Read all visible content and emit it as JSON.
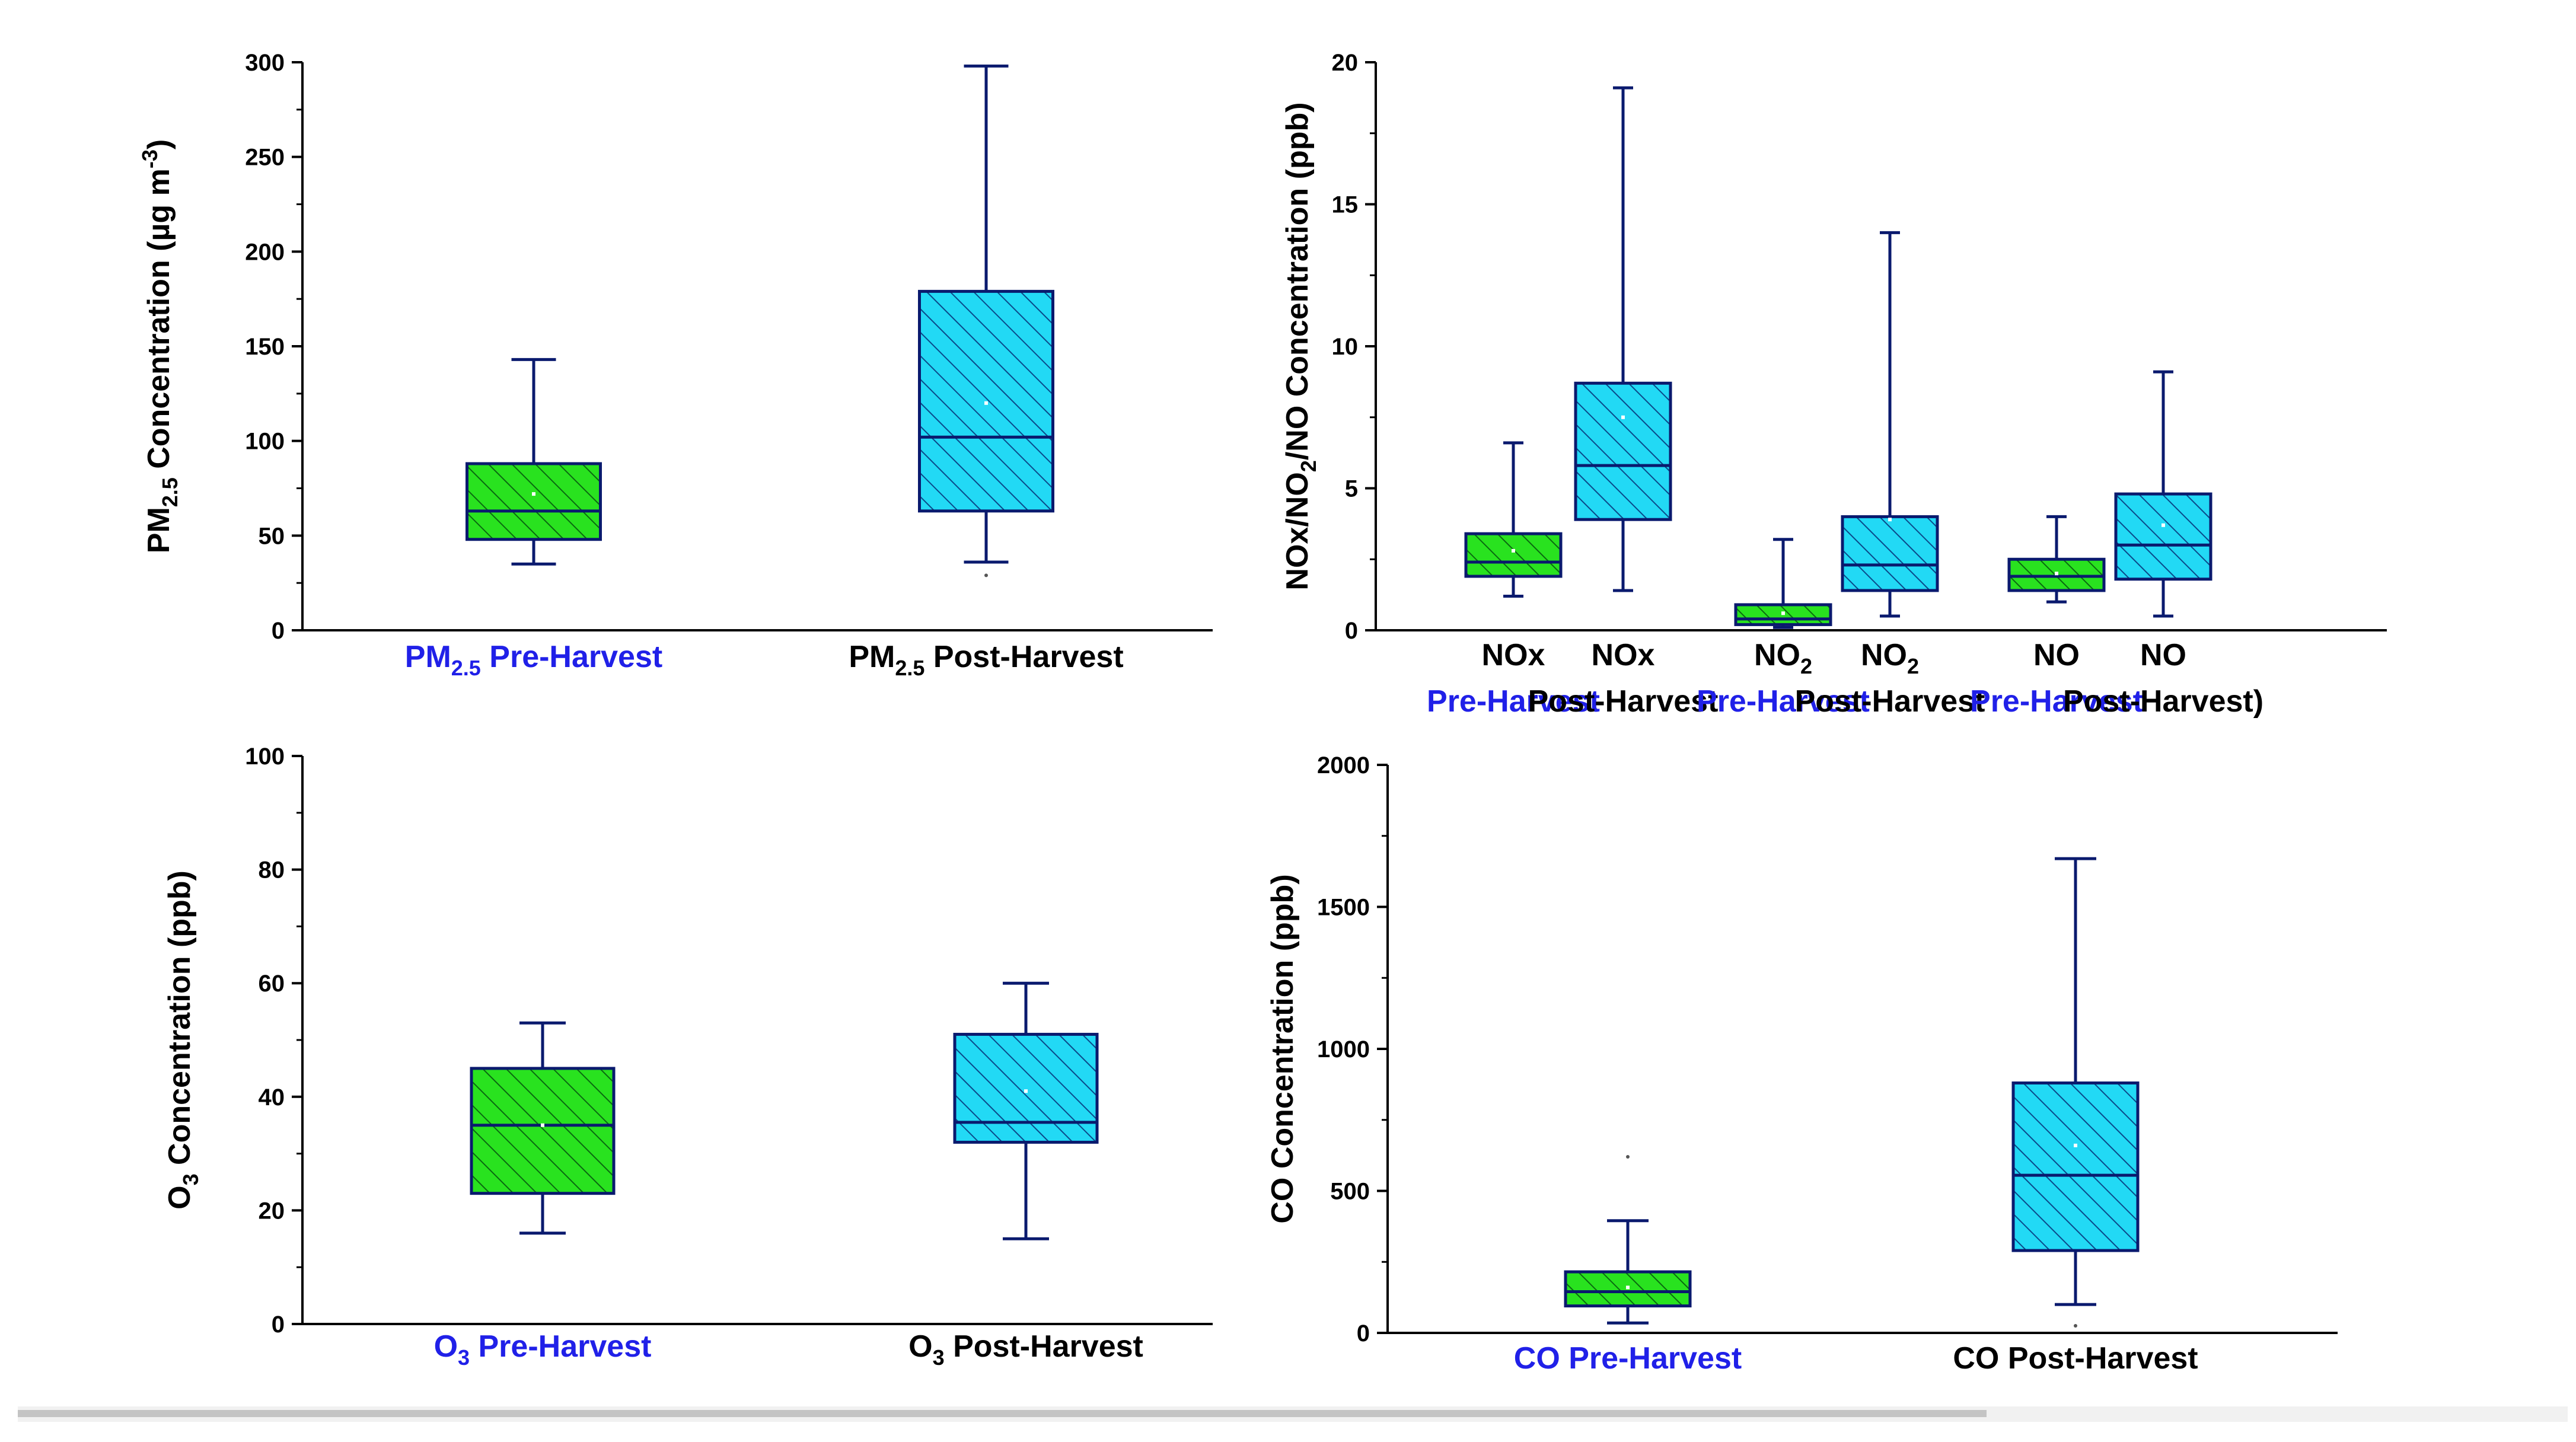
{
  "colors": {
    "pre_fill": "#29e21f",
    "post_fill": "#22d9f5",
    "stroke": "#0a1a6e",
    "pre_label": "#2020e8",
    "post_label": "#000000"
  },
  "chart_data": [
    {
      "id": "pm25",
      "type": "box",
      "ylabel": [
        {
          "t": "PM"
        },
        {
          "t": "2.5",
          "s": "sub"
        },
        {
          "t": " Concentration (µg m"
        },
        {
          "t": "-3",
          "s": "sup"
        },
        {
          "t": ")"
        }
      ],
      "ylim": [
        0,
        300
      ],
      "yticks": [
        0,
        50,
        100,
        150,
        200,
        250,
        300
      ],
      "boxes": [
        {
          "name": "PM2.5 Pre-Harvest",
          "group": "pre",
          "min": 35,
          "q1": 48,
          "median": 63,
          "q3": 88,
          "max": 143,
          "mean": 72,
          "label": [
            [
              {
                "t": "PM"
              },
              {
                "t": "2.5",
                "s": "sub"
              },
              {
                "t": " Pre-Harvest"
              }
            ]
          ]
        },
        {
          "name": "PM2.5 Post-Harvest",
          "group": "post",
          "min": 36,
          "q1": 63,
          "median": 102,
          "q3": 179,
          "max": 298,
          "mean": 120,
          "outlier": 29,
          "label": [
            [
              {
                "t": "PM"
              },
              {
                "t": "2.5",
                "s": "sub"
              },
              {
                "t": " Post-Harvest"
              }
            ]
          ]
        }
      ]
    },
    {
      "id": "nox",
      "type": "box",
      "ylabel": [
        {
          "t": "NOx/NO"
        },
        {
          "t": "2",
          "s": "sub"
        },
        {
          "t": "/NO Concentration (ppb)"
        }
      ],
      "ylim": [
        0,
        20
      ],
      "yticks": [
        0,
        5,
        10,
        15,
        20
      ],
      "boxes": [
        {
          "name": "NOx Pre-Harvest",
          "group": "pre",
          "min": 1.2,
          "q1": 1.9,
          "median": 2.4,
          "q3": 3.4,
          "max": 6.6,
          "mean": 2.8,
          "label": [
            [
              {
                "t": "NOx"
              }
            ],
            [
              {
                "t": "Pre-Harvest"
              }
            ]
          ]
        },
        {
          "name": "NOx Post-Harvest",
          "group": "post",
          "min": 1.4,
          "q1": 3.9,
          "median": 5.8,
          "q3": 8.7,
          "max": 19.1,
          "mean": 7.5,
          "label": [
            [
              {
                "t": "NOx"
              }
            ],
            [
              {
                "t": "Post-Harvest"
              }
            ]
          ]
        },
        {
          "name": "NO2 Pre-Harvest",
          "group": "pre",
          "min": 0.1,
          "q1": 0.2,
          "median": 0.4,
          "q3": 0.9,
          "max": 3.2,
          "mean": 0.6,
          "label": [
            [
              {
                "t": "NO"
              },
              {
                "t": "2",
                "s": "sub"
              }
            ],
            [
              {
                "t": "Pre-Harvest"
              }
            ]
          ]
        },
        {
          "name": "NO2 Post-Harvest",
          "group": "post",
          "min": 0.5,
          "q1": 1.4,
          "median": 2.3,
          "q3": 4.0,
          "max": 14.0,
          "mean": 3.9,
          "label": [
            [
              {
                "t": "NO"
              },
              {
                "t": "2",
                "s": "sub"
              }
            ],
            [
              {
                "t": "Post-Harvest"
              }
            ]
          ]
        },
        {
          "name": "NO Pre-Harvest",
          "group": "pre",
          "min": 1.0,
          "q1": 1.4,
          "median": 1.9,
          "q3": 2.5,
          "max": 4.0,
          "mean": 2.0,
          "label": [
            [
              {
                "t": "NO"
              }
            ],
            [
              {
                "t": "Pre-Harvest"
              }
            ]
          ]
        },
        {
          "name": "NO Post-Harvest",
          "group": "post",
          "min": 0.5,
          "q1": 1.8,
          "median": 3.0,
          "q3": 4.8,
          "max": 9.1,
          "mean": 3.7,
          "label": [
            [
              {
                "t": "NO"
              }
            ],
            [
              {
                "t": "Post-Harvest)"
              }
            ]
          ]
        }
      ]
    },
    {
      "id": "o3",
      "type": "box",
      "ylabel": [
        {
          "t": "O"
        },
        {
          "t": "3",
          "s": "sub"
        },
        {
          "t": " Concentration (ppb)"
        }
      ],
      "ylim": [
        0,
        100
      ],
      "yticks": [
        0,
        20,
        40,
        60,
        80,
        100
      ],
      "boxes": [
        {
          "name": "O3 Pre-Harvest",
          "group": "pre",
          "min": 16,
          "q1": 23,
          "median": 35,
          "q3": 45,
          "max": 53,
          "mean": 35,
          "label": [
            [
              {
                "t": "O"
              },
              {
                "t": "3",
                "s": "sub"
              },
              {
                "t": " Pre-Harvest"
              }
            ]
          ]
        },
        {
          "name": "O3 Post-Harvest",
          "group": "post",
          "min": 15,
          "q1": 32,
          "median": 35.5,
          "q3": 51,
          "max": 60,
          "mean": 41,
          "label": [
            [
              {
                "t": "O"
              },
              {
                "t": "3",
                "s": "sub"
              },
              {
                "t": " Post-Harvest"
              }
            ]
          ]
        }
      ]
    },
    {
      "id": "co",
      "type": "box",
      "ylabel": [
        {
          "t": "CO Concentration (ppb)"
        }
      ],
      "ylim": [
        0,
        2000
      ],
      "yticks": [
        0,
        500,
        1000,
        1500,
        2000
      ],
      "boxes": [
        {
          "name": "CO Pre-Harvest",
          "group": "pre",
          "min": 35,
          "q1": 95,
          "median": 145,
          "q3": 215,
          "max": 395,
          "mean": 160,
          "outlier": 620,
          "label": [
            [
              {
                "t": "CO Pre-Harvest"
              }
            ]
          ]
        },
        {
          "name": "CO Post-Harvest",
          "group": "post",
          "min": 100,
          "q1": 290,
          "median": 555,
          "q3": 880,
          "max": 1670,
          "mean": 660,
          "outlier": 25,
          "label": [
            [
              {
                "t": "CO Post-Harvest"
              }
            ]
          ]
        }
      ]
    }
  ]
}
